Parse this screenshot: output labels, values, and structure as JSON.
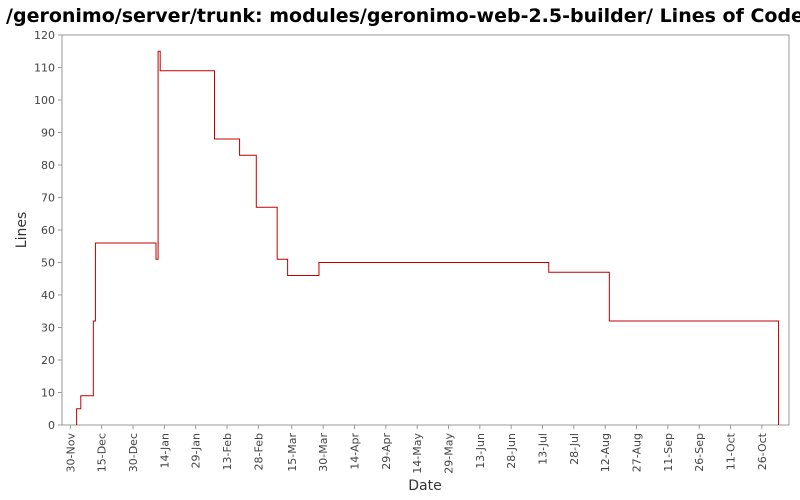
{
  "chart_data": {
    "type": "line",
    "step": true,
    "title": "/geronimo/server/trunk: modules/geronimo-web-2.5-builder/ Lines of Code",
    "xlabel": "Date",
    "ylabel": "Lines",
    "ylim": [
      0,
      120
    ],
    "y_ticks": [
      0,
      10,
      20,
      30,
      40,
      50,
      60,
      70,
      80,
      90,
      100,
      110,
      120
    ],
    "x_ticks": [
      {
        "date": "2007-11-30",
        "label": "30-Nov"
      },
      {
        "date": "2007-12-15",
        "label": "15-Dec"
      },
      {
        "date": "2007-12-30",
        "label": "30-Dec"
      },
      {
        "date": "2008-01-14",
        "label": "14-Jan"
      },
      {
        "date": "2008-01-29",
        "label": "29-Jan"
      },
      {
        "date": "2008-02-13",
        "label": "13-Feb"
      },
      {
        "date": "2008-02-28",
        "label": "28-Feb"
      },
      {
        "date": "2008-03-15",
        "label": "15-Mar"
      },
      {
        "date": "2008-03-30",
        "label": "30-Mar"
      },
      {
        "date": "2008-04-14",
        "label": "14-Apr"
      },
      {
        "date": "2008-04-29",
        "label": "29-Apr"
      },
      {
        "date": "2008-05-14",
        "label": "14-May"
      },
      {
        "date": "2008-05-29",
        "label": "29-May"
      },
      {
        "date": "2008-06-13",
        "label": "13-Jun"
      },
      {
        "date": "2008-06-28",
        "label": "28-Jun"
      },
      {
        "date": "2008-07-13",
        "label": "13-Jul"
      },
      {
        "date": "2008-07-28",
        "label": "28-Jul"
      },
      {
        "date": "2008-08-12",
        "label": "12-Aug"
      },
      {
        "date": "2008-08-27",
        "label": "27-Aug"
      },
      {
        "date": "2008-09-11",
        "label": "11-Sep"
      },
      {
        "date": "2008-09-26",
        "label": "26-Sep"
      },
      {
        "date": "2008-10-11",
        "label": "11-Oct"
      },
      {
        "date": "2008-10-26",
        "label": "26-Oct"
      }
    ],
    "xlim": [
      "2007-11-26",
      "2008-11-08"
    ],
    "grid": false,
    "legend": "none",
    "series": [
      {
        "color": "#c00000",
        "points": [
          {
            "x": "2007-12-03",
            "y": 0
          },
          {
            "x": "2007-12-03",
            "y": 5
          },
          {
            "x": "2007-12-05",
            "y": 9
          },
          {
            "x": "2007-12-11",
            "y": 32
          },
          {
            "x": "2007-12-12",
            "y": 56
          },
          {
            "x": "2008-01-10",
            "y": 51
          },
          {
            "x": "2008-01-11",
            "y": 115
          },
          {
            "x": "2008-01-12",
            "y": 109
          },
          {
            "x": "2008-02-07",
            "y": 88
          },
          {
            "x": "2008-02-19",
            "y": 83
          },
          {
            "x": "2008-02-27",
            "y": 67
          },
          {
            "x": "2008-03-08",
            "y": 51
          },
          {
            "x": "2008-03-13",
            "y": 46
          },
          {
            "x": "2008-03-28",
            "y": 50
          },
          {
            "x": "2008-07-16",
            "y": 47
          },
          {
            "x": "2008-08-14",
            "y": 32
          },
          {
            "x": "2008-11-03",
            "y": 0
          }
        ]
      }
    ]
  }
}
